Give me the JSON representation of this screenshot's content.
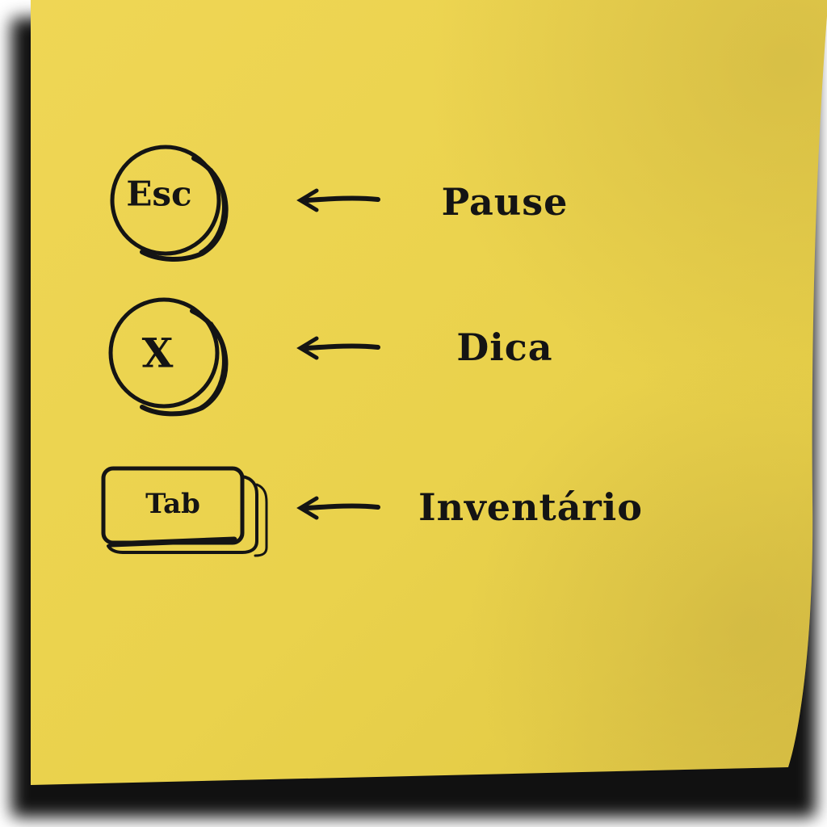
{
  "colors": {
    "note": "#ebd34d",
    "note_highlight": "#f1da58",
    "ink": "#141414",
    "shadow": "#111111"
  },
  "controls": [
    {
      "key": "Esc",
      "action": "Pause",
      "key_shape": "round"
    },
    {
      "key": "X",
      "action": "Dica",
      "key_shape": "round"
    },
    {
      "key": "Tab",
      "action": "Inventário",
      "key_shape": "rect"
    }
  ],
  "icons": {
    "arrow": "left-arrow-icon"
  }
}
